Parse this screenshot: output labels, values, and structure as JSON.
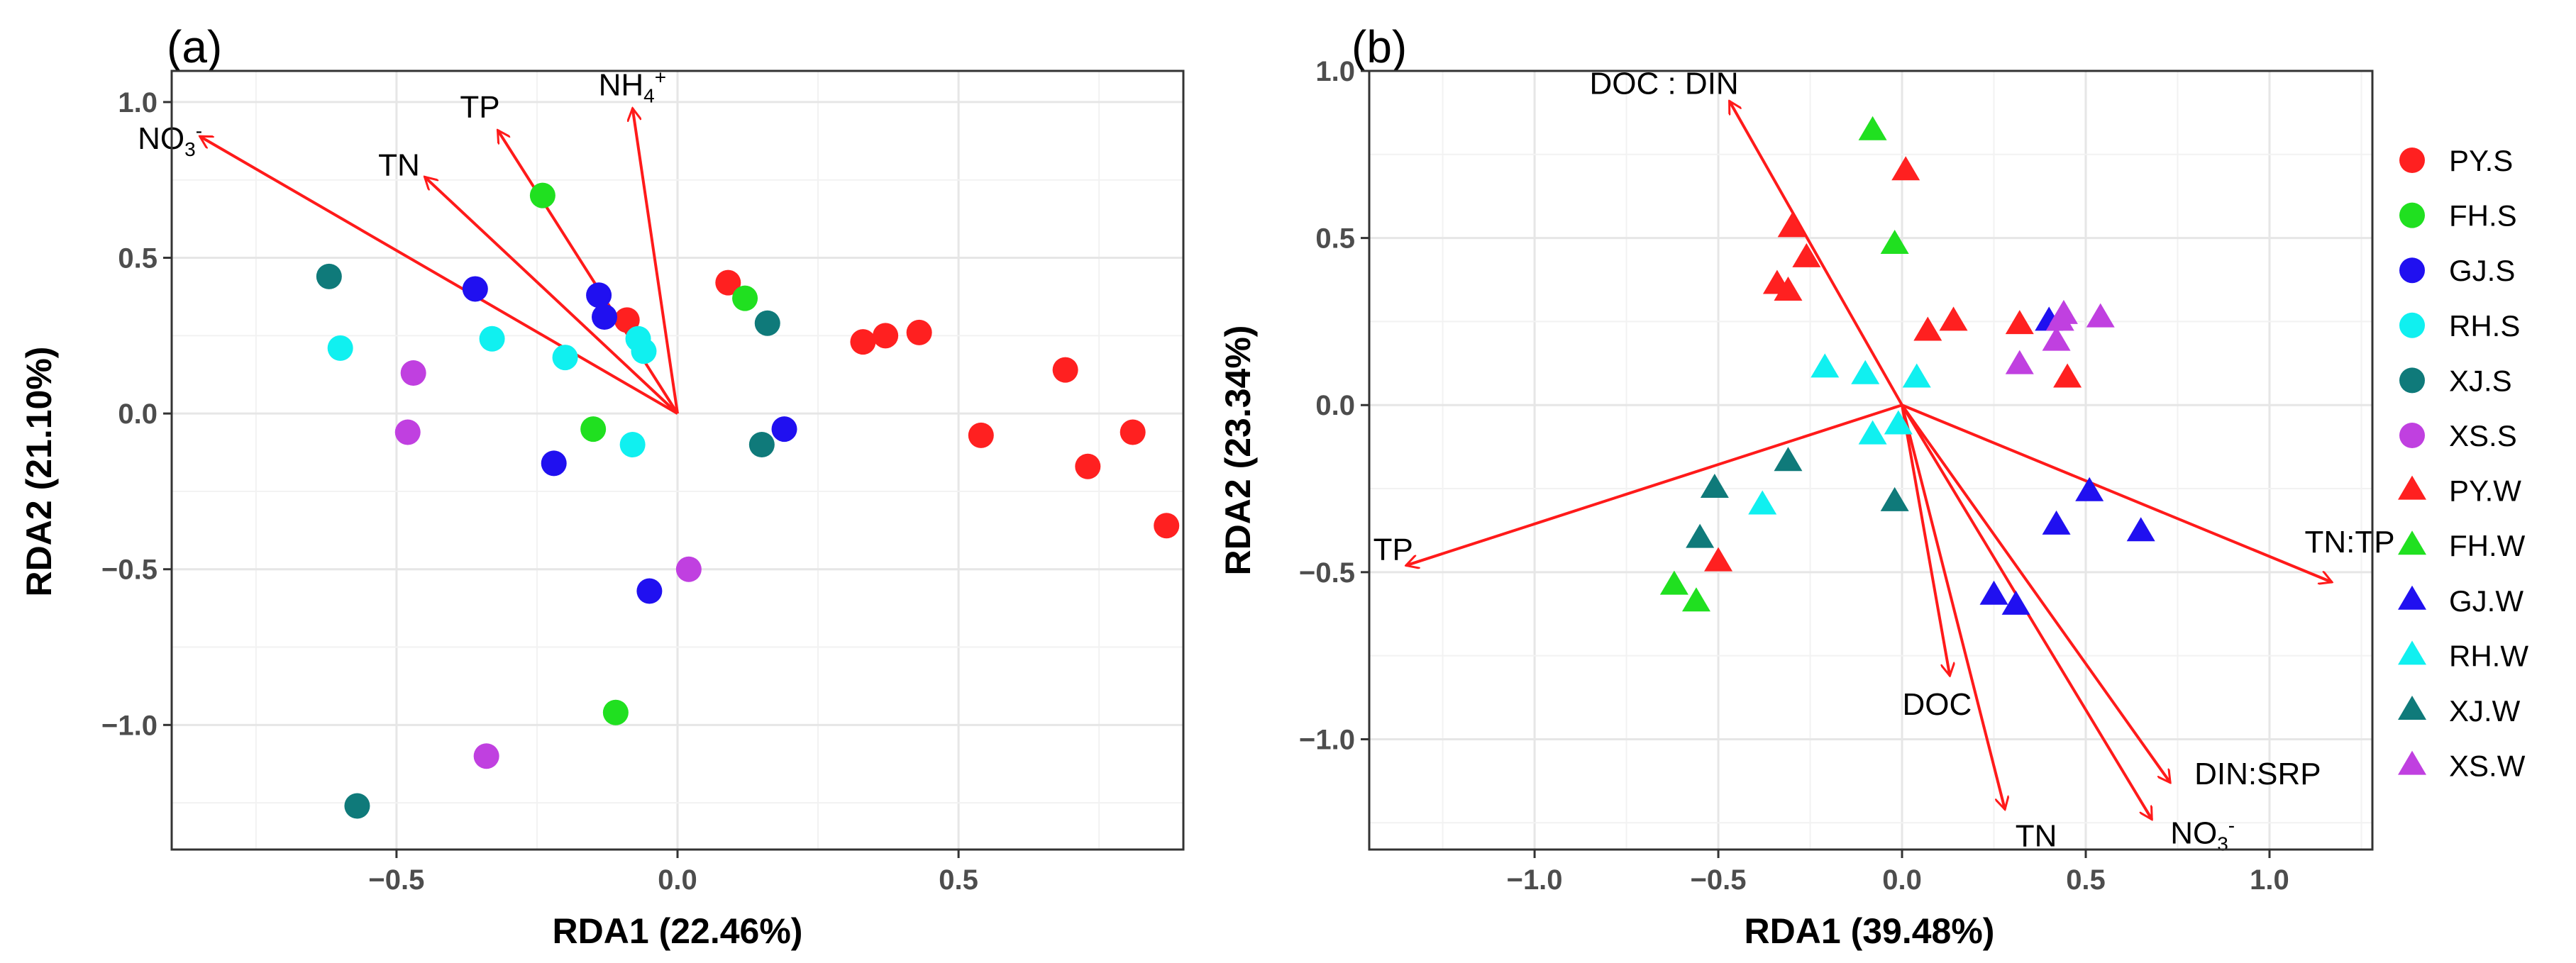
{
  "chart_data": [
    {
      "type": "scatter",
      "panel": "(a)",
      "xlabel": "RDA1 (22.46%)",
      "ylabel": "RDA2 (21.10%)",
      "xlim": [
        -0.9,
        0.9
      ],
      "ylim": [
        -1.4,
        1.1
      ],
      "xticks": [
        -0.5,
        0.0,
        0.5
      ],
      "yticks": [
        -1.0,
        -0.5,
        0.0,
        0.5,
        1.0
      ],
      "xtick_labels": [
        "−0.5",
        "0.0",
        "0.5"
      ],
      "ytick_labels": [
        "−1.0",
        "−0.5",
        "0.0",
        "0.5",
        "1.0"
      ],
      "grid": true,
      "vectors": [
        {
          "label": "NO3-",
          "x": -0.85,
          "y": 0.89
        },
        {
          "label": "TN",
          "x": -0.45,
          "y": 0.76
        },
        {
          "label": "TP",
          "x": -0.32,
          "y": 0.91
        },
        {
          "label": "NH4+",
          "x": -0.08,
          "y": 0.98
        }
      ],
      "vector_labels": {
        "NO3-": {
          "main": "NO",
          "sub": "3",
          "sup": "-"
        },
        "TN": {
          "main": "TN",
          "sub": "",
          "sup": ""
        },
        "TP": {
          "main": "TP",
          "sub": "",
          "sup": ""
        },
        "NH4+": {
          "main": "NH",
          "sub": "4",
          "sup": "+"
        }
      },
      "series": [
        {
          "name": "PY.S",
          "marker": "circle",
          "color": "#ff2020",
          "points": [
            [
              -0.09,
              0.3
            ],
            [
              0.09,
              0.42
            ],
            [
              0.33,
              0.23
            ],
            [
              0.37,
              0.25
            ],
            [
              0.43,
              0.26
            ],
            [
              0.54,
              -0.07
            ],
            [
              0.69,
              0.14
            ],
            [
              0.73,
              -0.17
            ],
            [
              0.81,
              -0.06
            ],
            [
              0.87,
              -0.36
            ]
          ]
        },
        {
          "name": "FH.S",
          "marker": "circle",
          "color": "#20e020",
          "points": [
            [
              -0.24,
              0.7
            ],
            [
              0.12,
              0.37
            ],
            [
              -0.15,
              -0.05
            ],
            [
              -0.11,
              -0.96
            ]
          ]
        },
        {
          "name": "GJ.S",
          "marker": "circle",
          "color": "#2010f0",
          "points": [
            [
              -0.36,
              0.4
            ],
            [
              -0.14,
              0.38
            ],
            [
              -0.13,
              0.31
            ],
            [
              0.19,
              -0.05
            ],
            [
              -0.22,
              -0.16
            ],
            [
              -0.05,
              -0.57
            ]
          ]
        },
        {
          "name": "RH.S",
          "marker": "circle",
          "color": "#10f0f0",
          "points": [
            [
              -0.6,
              0.21
            ],
            [
              -0.33,
              0.24
            ],
            [
              -0.2,
              0.18
            ],
            [
              -0.07,
              0.24
            ],
            [
              -0.06,
              0.2
            ],
            [
              -0.08,
              -0.1
            ]
          ]
        },
        {
          "name": "XJ.S",
          "marker": "circle",
          "color": "#0f7a7a",
          "points": [
            [
              -0.62,
              0.44
            ],
            [
              0.16,
              0.29
            ],
            [
              0.15,
              -0.1
            ],
            [
              -0.57,
              -1.26
            ]
          ]
        },
        {
          "name": "XS.S",
          "marker": "circle",
          "color": "#c040e0",
          "points": [
            [
              -0.47,
              0.13
            ],
            [
              -0.48,
              -0.06
            ],
            [
              0.02,
              -0.5
            ],
            [
              -0.34,
              -1.1
            ]
          ]
        }
      ]
    },
    {
      "type": "scatter",
      "panel": "(b)",
      "xlabel": "RDA1 (39.48%)",
      "ylabel": "RDA2 (23.34%)",
      "xlim": [
        -1.45,
        1.28
      ],
      "ylim": [
        -1.33,
        1.0
      ],
      "xticks": [
        -1.0,
        -0.5,
        0.0,
        0.5,
        1.0
      ],
      "yticks": [
        -1.0,
        -0.5,
        0.0,
        0.5,
        1.0
      ],
      "xtick_labels": [
        "−1.0",
        "−0.5",
        "0.0",
        "0.5",
        "1.0"
      ],
      "ytick_labels": [
        "−1.0",
        "−0.5",
        "0.0",
        "0.5",
        "1.0"
      ],
      "grid": true,
      "vectors": [
        {
          "label": "DOC:DIN",
          "x": -0.47,
          "y": 0.91
        },
        {
          "label": "TP",
          "x": -1.35,
          "y": -0.48
        },
        {
          "label": "TN:TP",
          "x": 1.17,
          "y": -0.53
        },
        {
          "label": "DOC",
          "x": 0.13,
          "y": -0.81
        },
        {
          "label": "TN",
          "x": 0.28,
          "y": -1.21
        },
        {
          "label": "NO3-",
          "x": 0.68,
          "y": -1.24
        },
        {
          "label": "DIN:SRP",
          "x": 0.73,
          "y": -1.13
        }
      ],
      "vector_labels": {
        "DOC:DIN": {
          "main": "DOC : DIN",
          "sub": "",
          "sup": ""
        },
        "TP": {
          "main": "TP",
          "sub": "",
          "sup": ""
        },
        "TN:TP": {
          "main": "TN:TP",
          "sub": "",
          "sup": ""
        },
        "DOC": {
          "main": "DOC",
          "sub": "",
          "sup": ""
        },
        "TN": {
          "main": "TN",
          "sub": "",
          "sup": ""
        },
        "NO3-": {
          "main": "NO",
          "sub": "3",
          "sup": "-"
        },
        "DIN:SRP": {
          "main": "DIN:SRP",
          "sub": "",
          "sup": ""
        }
      },
      "series": [
        {
          "name": "PY.W",
          "marker": "triangle",
          "color": "#ff2020",
          "points": [
            [
              -0.3,
              0.53
            ],
            [
              -0.26,
              0.44
            ],
            [
              -0.34,
              0.36
            ],
            [
              -0.31,
              0.34
            ],
            [
              0.01,
              0.7
            ],
            [
              0.07,
              0.22
            ],
            [
              0.14,
              0.25
            ],
            [
              0.32,
              0.24
            ],
            [
              0.45,
              0.08
            ],
            [
              -0.5,
              -0.47
            ]
          ]
        },
        {
          "name": "FH.W",
          "marker": "triangle",
          "color": "#20e020",
          "points": [
            [
              -0.08,
              0.82
            ],
            [
              -0.02,
              0.48
            ],
            [
              -0.62,
              -0.54
            ],
            [
              -0.56,
              -0.59
            ]
          ]
        },
        {
          "name": "GJ.W",
          "marker": "triangle",
          "color": "#2010f0",
          "points": [
            [
              0.4,
              0.25
            ],
            [
              0.51,
              -0.26
            ],
            [
              0.65,
              -0.38
            ],
            [
              0.42,
              -0.36
            ],
            [
              0.25,
              -0.57
            ],
            [
              0.31,
              -0.6
            ]
          ]
        },
        {
          "name": "RH.W",
          "marker": "triangle",
          "color": "#10f0f0",
          "points": [
            [
              -0.21,
              0.11
            ],
            [
              -0.1,
              0.09
            ],
            [
              0.04,
              0.08
            ],
            [
              -0.08,
              -0.09
            ],
            [
              -0.01,
              -0.06
            ],
            [
              -0.38,
              -0.3
            ]
          ]
        },
        {
          "name": "XJ.W",
          "marker": "triangle",
          "color": "#0f7a7a",
          "points": [
            [
              -0.51,
              -0.25
            ],
            [
              -0.31,
              -0.17
            ],
            [
              -0.55,
              -0.4
            ],
            [
              -0.02,
              -0.29
            ]
          ]
        },
        {
          "name": "XS.W",
          "marker": "triangle",
          "color": "#c040e0",
          "points": [
            [
              0.32,
              0.12
            ],
            [
              0.42,
              0.19
            ],
            [
              0.43,
              0.25
            ],
            [
              0.54,
              0.26
            ],
            [
              0.44,
              0.27
            ]
          ]
        }
      ]
    }
  ],
  "legend": [
    {
      "label": "PY.S",
      "marker": "circle",
      "color": "#ff2020"
    },
    {
      "label": "FH.S",
      "marker": "circle",
      "color": "#20e020"
    },
    {
      "label": "GJ.S",
      "marker": "circle",
      "color": "#2010f0"
    },
    {
      "label": "RH.S",
      "marker": "circle",
      "color": "#10f0f0"
    },
    {
      "label": "XJ.S",
      "marker": "circle",
      "color": "#0f7a7a"
    },
    {
      "label": "XS.S",
      "marker": "circle",
      "color": "#c040e0"
    },
    {
      "label": "PY.W",
      "marker": "triangle",
      "color": "#ff2020"
    },
    {
      "label": "FH.W",
      "marker": "triangle",
      "color": "#20e020"
    },
    {
      "label": "GJ.W",
      "marker": "triangle",
      "color": "#2010f0"
    },
    {
      "label": "RH.W",
      "marker": "triangle",
      "color": "#10f0f0"
    },
    {
      "label": "XJ.W",
      "marker": "triangle",
      "color": "#0f7a7a"
    },
    {
      "label": "XS.W",
      "marker": "triangle",
      "color": "#c040e0"
    }
  ],
  "colors": {
    "vector": "#ff1a1a",
    "grid_major": "#e6e6e6",
    "grid_minor": "#f2f2f2",
    "axis": "#333333"
  }
}
